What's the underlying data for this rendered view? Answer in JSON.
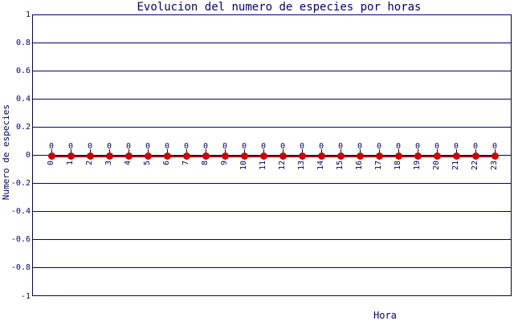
{
  "chart_data": {
    "type": "line",
    "title": "Evolucion del numero de especies por horas",
    "xlabel": "Hora",
    "ylabel": "Numero de especies",
    "x": [
      0,
      1,
      2,
      3,
      4,
      5,
      6,
      7,
      8,
      9,
      10,
      11,
      12,
      13,
      14,
      15,
      16,
      17,
      18,
      19,
      20,
      21,
      22,
      23
    ],
    "xtick_labels": [
      "0",
      "1",
      "2",
      "3",
      "4",
      "5",
      "6",
      "7",
      "8",
      "9",
      "10",
      "11",
      "12",
      "13",
      "14",
      "15",
      "16",
      "17",
      "18",
      "19",
      "20",
      "21",
      "22",
      "23"
    ],
    "values": [
      0,
      0,
      0,
      0,
      0,
      0,
      0,
      0,
      0,
      0,
      0,
      0,
      0,
      0,
      0,
      0,
      0,
      0,
      0,
      0,
      0,
      0,
      0,
      0
    ],
    "point_value_labels": [
      "0",
      "0",
      "0",
      "0",
      "0",
      "0",
      "0",
      "0",
      "0",
      "0",
      "0",
      "0",
      "0",
      "0",
      "0",
      "0",
      "0",
      "0",
      "0",
      "0",
      "0",
      "0",
      "0",
      "0"
    ],
    "ylim": [
      -1,
      1
    ],
    "yticks": [
      {
        "label": "1",
        "value": 1
      },
      {
        "label": "0.8",
        "value": 0.8
      },
      {
        "label": "0.6",
        "value": 0.6
      },
      {
        "label": "0.4",
        "value": 0.4
      },
      {
        "label": "0.2",
        "value": 0.2
      },
      {
        "label": "0",
        "value": 0
      },
      {
        "label": "-0.2",
        "value": -0.2
      },
      {
        "label": "-0.4",
        "value": -0.4
      },
      {
        "label": "-0.6",
        "value": -0.6
      },
      {
        "label": "-0.8",
        "value": -0.8
      },
      {
        "label": "-1",
        "value": -1
      }
    ],
    "grid": true,
    "legend_position": "none",
    "marker": "circle",
    "colors": {
      "axis": "#000080",
      "text": "#000080",
      "marker_fill": "#cc0000",
      "series_line": "#990000",
      "background": "#ffffff"
    }
  }
}
